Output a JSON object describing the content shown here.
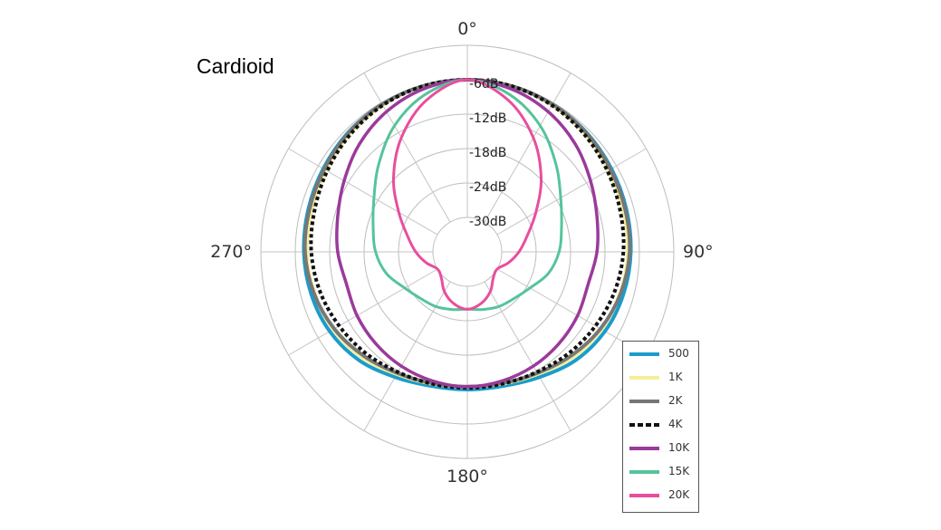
{
  "chart_data": {
    "type": "polar",
    "title": "Cardioid",
    "angle_labels": [
      {
        "angle": 0,
        "label": "0°"
      },
      {
        "angle": 90,
        "label": "90°"
      },
      {
        "angle": 180,
        "label": "180°"
      },
      {
        "angle": 270,
        "label": "270°"
      }
    ],
    "radial_labels": [
      "-6dB",
      "-12dB",
      "-18dB",
      "-24dB",
      "-30dB"
    ],
    "radial_range_db": [
      -36,
      0
    ],
    "grid": true,
    "legend_position": "bottom-right",
    "angles_deg": [
      0,
      15,
      30,
      45,
      60,
      75,
      90,
      105,
      120,
      135,
      150,
      165,
      180
    ],
    "series": [
      {
        "name": "500",
        "color": "#1a9ccc",
        "width": 4,
        "dash": "",
        "values_db": [
          -6,
          -6.1,
          -6.3,
          -6.6,
          -7.0,
          -7.3,
          -7.5,
          -7.8,
          -8.3,
          -9.3,
          -10.8,
          -11.8,
          -12
        ]
      },
      {
        "name": "1K",
        "color": "#f5ee9a",
        "width": 4,
        "dash": "",
        "values_db": [
          -6,
          -6.1,
          -6.5,
          -7.0,
          -7.6,
          -7.9,
          -8.0,
          -8.4,
          -9.0,
          -10.0,
          -11.4,
          -12.2,
          -12.5
        ]
      },
      {
        "name": "2K",
        "color": "#777777",
        "width": 4,
        "dash": "",
        "values_db": [
          -6,
          -6.1,
          -6.3,
          -6.7,
          -7.2,
          -7.5,
          -7.7,
          -8.3,
          -9.2,
          -10.4,
          -11.6,
          -12.3,
          -12.5
        ]
      },
      {
        "name": "4K",
        "color": "#111111",
        "width": 4,
        "dash": "4,3",
        "values_db": [
          -6,
          -6.1,
          -6.5,
          -7.1,
          -7.8,
          -8.4,
          -8.8,
          -9.4,
          -10.2,
          -11.0,
          -11.8,
          -12.2,
          -12.3
        ]
      },
      {
        "name": "10K",
        "color": "#9b3a9b",
        "width": 3.5,
        "dash": "",
        "values_db": [
          -6,
          -6.6,
          -7.8,
          -9.4,
          -11.2,
          -12.6,
          -13.4,
          -14.2,
          -13.8,
          -13.4,
          -13.0,
          -12.7,
          -12.5
        ]
      },
      {
        "name": "15K",
        "color": "#55c49a",
        "width": 3,
        "dash": "",
        "values_db": [
          -6,
          -7.6,
          -10.6,
          -14.2,
          -17.2,
          -19.0,
          -20.0,
          -21.4,
          -23.4,
          -24.5,
          -25.0,
          -25.6,
          -26
        ]
      },
      {
        "name": "20K",
        "color": "#e84e9e",
        "width": 3,
        "dash": "",
        "values_db": [
          -6,
          -8.6,
          -13.0,
          -17.8,
          -22.2,
          -25.2,
          -27.0,
          -28.6,
          -30.0,
          -29.6,
          -28.0,
          -26.7,
          -26
        ]
      }
    ]
  }
}
